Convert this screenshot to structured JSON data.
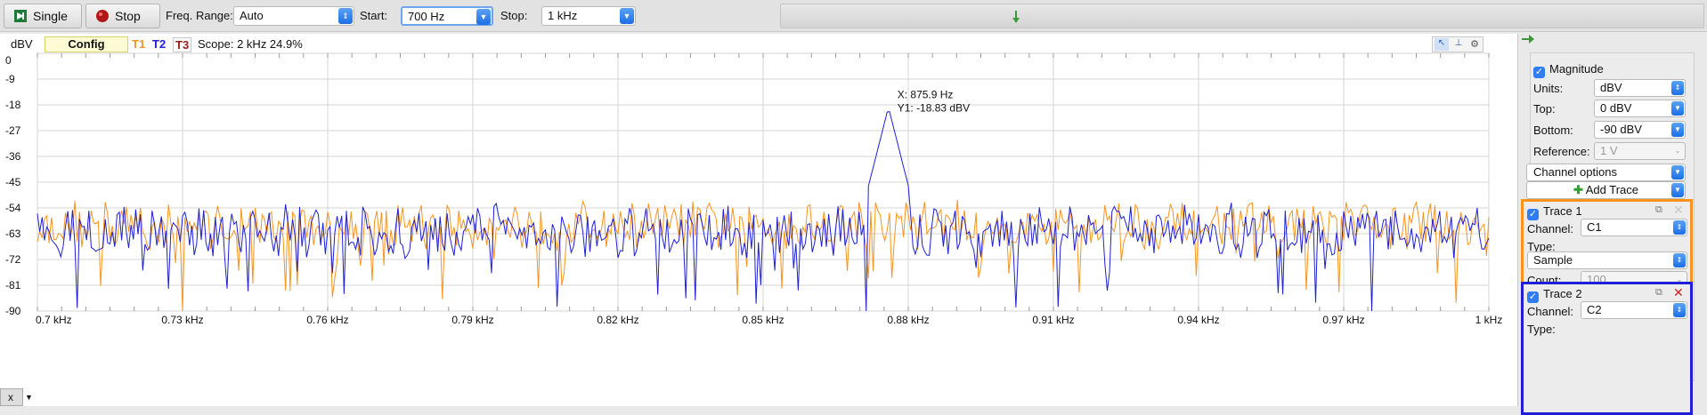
{
  "toolbar": {
    "single_label": "Single",
    "stop_label": "Stop",
    "freq_range_label": "Freq. Range:",
    "freq_range_value": "Auto",
    "start_label": "Start:",
    "start_value": "700 Hz",
    "stop_field_label": "Stop:",
    "stop_value": "1 kHz"
  },
  "plot": {
    "unit_label": "dBV",
    "config_label": "Config",
    "trace_tabs": [
      {
        "label": "T1",
        "color": "#f7941d"
      },
      {
        "label": "T2",
        "color": "#1f1fd6"
      },
      {
        "label": "T3",
        "color": "#9b1b1b"
      }
    ],
    "scope_text": "Scope: 2 kHz 24.9%",
    "cursor_x_text": "X: 875.9 Hz",
    "cursor_y_text": "Y1: -18.83 dBV",
    "x_button_label": "x"
  },
  "chart_data": {
    "type": "line",
    "ylabel": "dBV",
    "xlabel": "kHz",
    "xlim": [
      0.7,
      1.0
    ],
    "ylim": [
      -90,
      0
    ],
    "yticks": [
      "0",
      "-9",
      "-18",
      "-27",
      "-36",
      "-45",
      "-54",
      "-63",
      "-72",
      "-81",
      "-90"
    ],
    "xticks": [
      "0.7 kHz",
      "0.73 kHz",
      "0.76 kHz",
      "0.79 kHz",
      "0.82 kHz",
      "0.85 kHz",
      "0.88 kHz",
      "0.91 kHz",
      "0.94 kHz",
      "0.97 kHz",
      "1 kHz"
    ],
    "series": [
      {
        "name": "Trace 1 (C1)",
        "color": "#f7941d",
        "baseline": -60,
        "noise_span": 9
      },
      {
        "name": "Trace 2 (C2)",
        "color": "#1f1fd6",
        "baseline": -62,
        "noise_span": 10,
        "peak": {
          "x": 0.8759,
          "y": -18.83
        }
      }
    ],
    "annotations": [
      "X: 875.9 Hz",
      "Y1: -18.83 dBV"
    ]
  },
  "panel": {
    "magnitude_label": "Magnitude",
    "units_label": "Units:",
    "units_value": "dBV",
    "top_label": "Top:",
    "top_value": "0 dBV",
    "bottom_label": "Bottom:",
    "bottom_value": "-90 dBV",
    "reference_label": "Reference:",
    "reference_value": "1 V",
    "channel_options_label": "Channel options",
    "add_trace_label": "Add Trace",
    "trace1": {
      "title": "Trace 1",
      "channel_label": "Channel:",
      "channel_value": "C1",
      "type_label": "Type:",
      "type_value": "Sample",
      "count_label": "Count:",
      "count_value": "100",
      "color": "#f7941d"
    },
    "trace2": {
      "title": "Trace 2",
      "channel_label": "Channel:",
      "channel_value": "C2",
      "type_label": "Type:",
      "color": "#1f1fd6"
    }
  }
}
